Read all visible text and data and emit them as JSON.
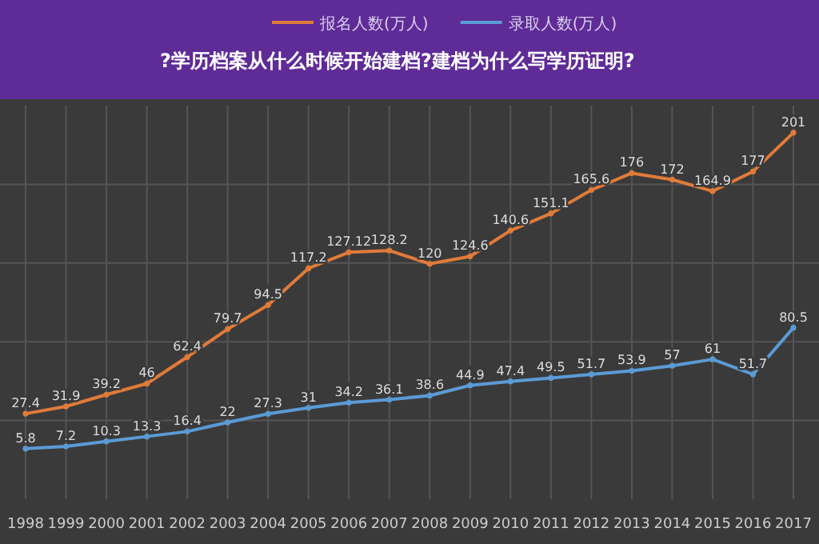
{
  "chart_data": {
    "type": "line",
    "title": "?学历档案从什么时候开始建档?建档为什么写学历证明?",
    "categories": [
      "1998",
      "1999",
      "2000",
      "2001",
      "2002",
      "2003",
      "2004",
      "2005",
      "2006",
      "2007",
      "2008",
      "2009",
      "2010",
      "2011",
      "2012",
      "2013",
      "2014",
      "2015",
      "2016",
      "2017"
    ],
    "series": [
      {
        "name": "报名人数(万人)",
        "color": "#e07b39",
        "values": [
          27.4,
          31.9,
          39.2,
          46,
          62.4,
          79.7,
          94.5,
          117.2,
          127.12,
          128.2,
          120,
          124.6,
          140.6,
          151.1,
          165.6,
          176,
          172,
          164.9,
          177,
          201
        ]
      },
      {
        "name": "录取人数(万人)",
        "color": "#5b9bd5",
        "values": [
          5.8,
          7.2,
          10.3,
          13.3,
          16.4,
          22,
          27.3,
          31,
          34.2,
          36.1,
          38.6,
          44.9,
          47.4,
          49.5,
          51.7,
          53.9,
          57,
          61,
          51.7,
          80.5
        ]
      }
    ],
    "grid": true,
    "tick_labels": "x",
    "data_labels": true,
    "legend": "top",
    "marker": "circle"
  }
}
